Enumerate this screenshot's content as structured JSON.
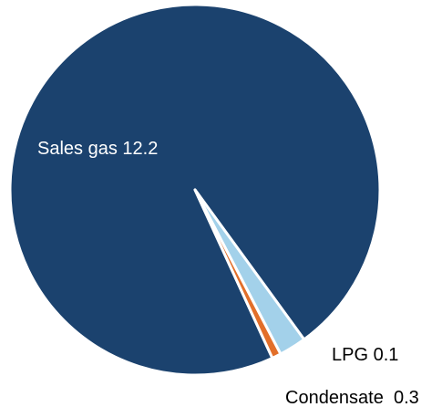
{
  "chart_data": {
    "type": "pie",
    "categories": [
      "Sales gas",
      "LPG",
      "Condensate"
    ],
    "values": [
      12.2,
      0.1,
      0.3
    ],
    "colors": [
      "#1b426e",
      "#e26f2a",
      "#a3d1ea"
    ],
    "labels": {
      "sales_gas": "Sales gas 12.2",
      "lpg": "LPG 0.1",
      "condensate": "Condensate  0.3"
    },
    "label_colors": {
      "sales_gas": "#ffffff",
      "lpg": "#000000",
      "condensate": "#000000"
    },
    "legend": "none"
  }
}
